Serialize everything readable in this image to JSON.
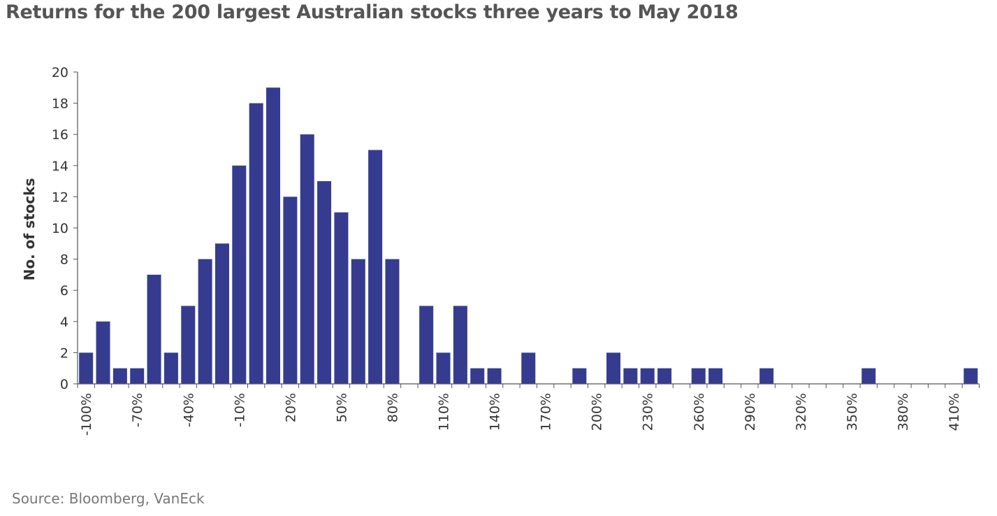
{
  "chart_data": {
    "type": "bar",
    "title": "Returns for the 200 largest Australian stocks three years to May 2018",
    "xlabel": "",
    "ylabel": "No. of stocks",
    "ylim": [
      0,
      20
    ],
    "yticks": [
      0,
      2,
      4,
      6,
      8,
      10,
      12,
      14,
      16,
      18,
      20
    ],
    "x_bin_start": -100,
    "x_bin_step": 10,
    "xtick_labels": [
      "-100%",
      "-70%",
      "-40%",
      "-10%",
      "20%",
      "50%",
      "80%",
      "110%",
      "140%",
      "170%",
      "200%",
      "230%",
      "260%",
      "290%",
      "320%",
      "350%",
      "380%",
      "410%"
    ],
    "values": [
      2,
      4,
      1,
      1,
      7,
      2,
      5,
      8,
      9,
      14,
      18,
      19,
      12,
      16,
      13,
      11,
      8,
      15,
      8,
      0,
      5,
      2,
      5,
      1,
      1,
      0,
      2,
      0,
      0,
      1,
      0,
      2,
      1,
      1,
      1,
      0,
      1,
      1,
      0,
      0,
      1,
      0,
      0,
      0,
      0,
      0,
      1,
      0,
      0,
      0,
      0,
      0,
      1
    ],
    "bar_color": "#353c8f",
    "source": "Source: Bloomberg, VanEck"
  }
}
